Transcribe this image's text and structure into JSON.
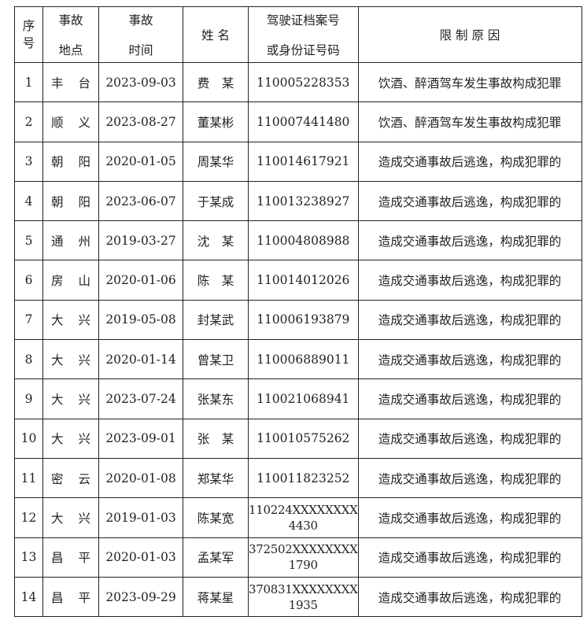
{
  "headers": {
    "index": "序号",
    "location_top": "事故",
    "location_bottom": "地点",
    "time_top": "事故",
    "time_bottom": "时间",
    "name": "姓 名",
    "id_top": "驾驶证档案号",
    "id_bottom": "或身份证号码",
    "reason": "限 制 原 因"
  },
  "rows": [
    {
      "no": "1",
      "loc": [
        "丰",
        "台"
      ],
      "date": "2023-09-03",
      "name": "费　某",
      "id": [
        "110005228353"
      ],
      "reason": "饮酒、醉酒驾车发生事故构成犯罪"
    },
    {
      "no": "2",
      "loc": [
        "顺",
        "义"
      ],
      "date": "2023-08-27",
      "name": "董某彬",
      "id": [
        "110007441480"
      ],
      "reason": "饮酒、醉酒驾车发生事故构成犯罪"
    },
    {
      "no": "3",
      "loc": [
        "朝",
        "阳"
      ],
      "date": "2020-01-05",
      "name": "周某华",
      "id": [
        "110014617921"
      ],
      "reason": "造成交通事故后逃逸，构成犯罪的"
    },
    {
      "no": "4",
      "loc": [
        "朝",
        "阳"
      ],
      "date": "2023-06-07",
      "name": "于某成",
      "id": [
        "110013238927"
      ],
      "reason": "造成交通事故后逃逸，构成犯罪的"
    },
    {
      "no": "5",
      "loc": [
        "通",
        "州"
      ],
      "date": "2019-03-27",
      "name": "沈　某",
      "id": [
        "110004808988"
      ],
      "reason": "造成交通事故后逃逸，构成犯罪的"
    },
    {
      "no": "6",
      "loc": [
        "房",
        "山"
      ],
      "date": "2020-01-06",
      "name": "陈　某",
      "id": [
        "110014012026"
      ],
      "reason": "造成交通事故后逃逸，构成犯罪的"
    },
    {
      "no": "7",
      "loc": [
        "大",
        "兴"
      ],
      "date": "2019-05-08",
      "name": "封某武",
      "id": [
        "110006193879"
      ],
      "reason": "造成交通事故后逃逸，构成犯罪的"
    },
    {
      "no": "8",
      "loc": [
        "大",
        "兴"
      ],
      "date": "2020-01-14",
      "name": "曾某卫",
      "id": [
        "110006889011"
      ],
      "reason": "造成交通事故后逃逸，构成犯罪的"
    },
    {
      "no": "9",
      "loc": [
        "大",
        "兴"
      ],
      "date": "2023-07-24",
      "name": "张某东",
      "id": [
        "110021068941"
      ],
      "reason": "造成交通事故后逃逸，构成犯罪的"
    },
    {
      "no": "10",
      "loc": [
        "大",
        "兴"
      ],
      "date": "2023-09-01",
      "name": "张　某",
      "id": [
        "110010575262"
      ],
      "reason": "造成交通事故后逃逸，构成犯罪的"
    },
    {
      "no": "11",
      "loc": [
        "密",
        "云"
      ],
      "date": "2020-01-08",
      "name": "郑某华",
      "id": [
        "110011823252"
      ],
      "reason": "造成交通事故后逃逸，构成犯罪的"
    },
    {
      "no": "12",
      "loc": [
        "大",
        "兴"
      ],
      "date": "2019-01-03",
      "name": "陈某宽",
      "id": [
        "110224XXXXXXXX",
        "4430"
      ],
      "reason": "造成交通事故后逃逸，构成犯罪的"
    },
    {
      "no": "13",
      "loc": [
        "昌",
        "平"
      ],
      "date": "2020-01-03",
      "name": "孟某军",
      "id": [
        "372502XXXXXXXX",
        "1790"
      ],
      "reason": "造成交通事故后逃逸，构成犯罪的"
    },
    {
      "no": "14",
      "loc": [
        "昌",
        "平"
      ],
      "date": "2023-09-29",
      "name": "蒋某星",
      "id": [
        "370831XXXXXXXX",
        "1935"
      ],
      "reason": "造成交通事故后逃逸，构成犯罪的"
    }
  ]
}
